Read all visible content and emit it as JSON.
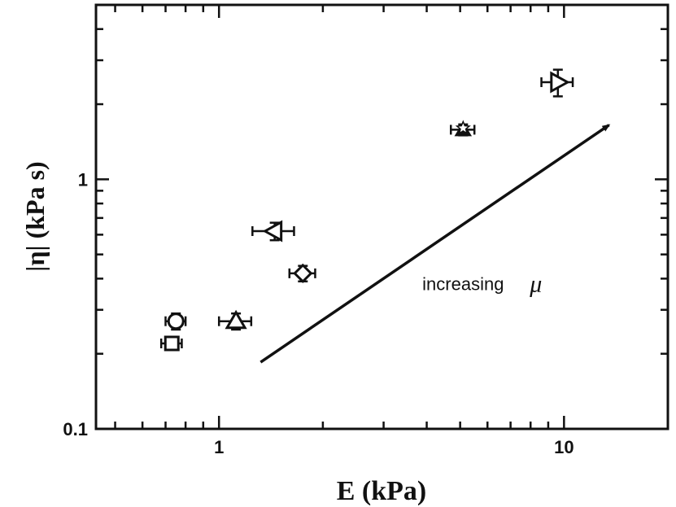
{
  "chart_data": {
    "type": "scatter",
    "xscale": "log",
    "yscale": "log",
    "xlim": [
      0.44,
      20
    ],
    "ylim": [
      0.1,
      5
    ],
    "xlabel": "E (kPa)",
    "ylabel": "|η| (kPa s)",
    "x_ticks": [
      {
        "value": 1,
        "label": "1"
      },
      {
        "value": 10,
        "label": "10"
      }
    ],
    "y_ticks": [
      {
        "value": 0.1,
        "label": "0.1"
      },
      {
        "value": 1,
        "label": "1"
      }
    ],
    "grid": false,
    "points": [
      {
        "marker": "square",
        "filled": false,
        "x": 0.73,
        "y": 0.22,
        "xerr": 0.05,
        "yerr": 0.01
      },
      {
        "marker": "circle",
        "filled": false,
        "x": 0.75,
        "y": 0.27,
        "xerr": 0.05,
        "yerr": 0.02
      },
      {
        "marker": "triangle-up",
        "filled": false,
        "x": 1.12,
        "y": 0.27,
        "xerr": 0.12,
        "yerr": 0.02
      },
      {
        "marker": "triangle-left",
        "filled": false,
        "x": 1.45,
        "y": 0.62,
        "xerr": 0.2,
        "yerr": 0.05
      },
      {
        "marker": "diamond",
        "filled": false,
        "x": 1.75,
        "y": 0.42,
        "xerr": 0.15,
        "yerr": 0.03
      },
      {
        "marker": "star-on-triangle",
        "filled": true,
        "x": 5.1,
        "y": 1.58,
        "xerr": 0.4,
        "yerr": 0.08
      },
      {
        "marker": "triangle-right",
        "filled": false,
        "x": 9.6,
        "y": 2.45,
        "xerr": 1.0,
        "yerr": 0.3
      }
    ],
    "annotation": {
      "text": "increasing",
      "symbol": "μ",
      "arrow_from": [
        1.32,
        0.185
      ],
      "arrow_to": [
        13.5,
        1.65
      ],
      "text_at": [
        5.1,
        0.36
      ]
    },
    "colors": {
      "ink": "#111111",
      "background": "#ffffff"
    }
  }
}
